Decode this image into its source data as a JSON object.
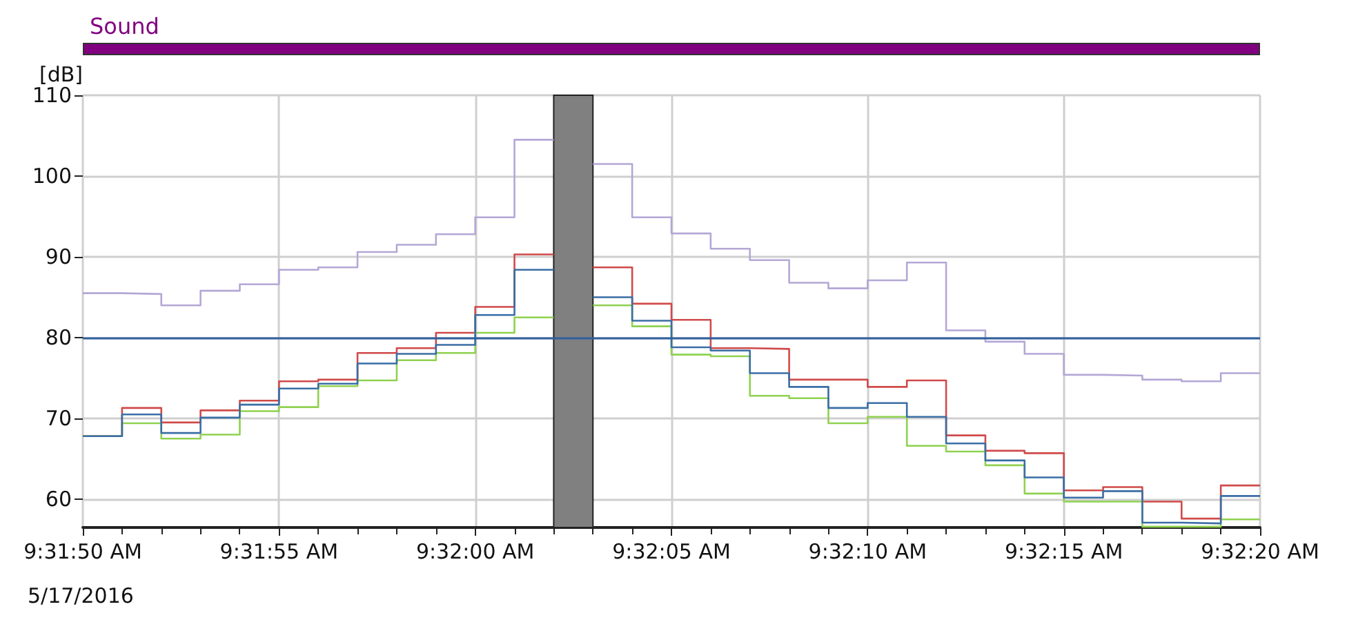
{
  "chart_data": {
    "type": "step",
    "title": "Sound",
    "ylabel": "[dB]",
    "annotations": [
      "5/17/2016"
    ],
    "x": [
      "2016-05-17T09:31:50",
      "2016-05-17T09:31:51",
      "2016-05-17T09:31:52",
      "2016-05-17T09:31:53",
      "2016-05-17T09:31:54",
      "2016-05-17T09:31:55",
      "2016-05-17T09:31:56",
      "2016-05-17T09:31:57",
      "2016-05-17T09:31:58",
      "2016-05-17T09:31:59",
      "2016-05-17T09:32:00",
      "2016-05-17T09:32:01",
      "2016-05-17T09:32:02",
      "2016-05-17T09:32:03",
      "2016-05-17T09:32:04",
      "2016-05-17T09:32:05",
      "2016-05-17T09:32:06",
      "2016-05-17T09:32:07",
      "2016-05-17T09:32:08",
      "2016-05-17T09:32:09",
      "2016-05-17T09:32:10",
      "2016-05-17T09:32:11",
      "2016-05-17T09:32:12",
      "2016-05-17T09:32:13",
      "2016-05-17T09:32:14",
      "2016-05-17T09:32:15",
      "2016-05-17T09:32:16",
      "2016-05-17T09:32:17",
      "2016-05-17T09:32:18",
      "2016-05-17T09:32:19",
      "2016-05-17T09:32:20"
    ],
    "series": [
      {
        "color": "#b4a7d6",
        "values": [
          85.5,
          85.4,
          84.0,
          85.8,
          86.6,
          88.4,
          88.7,
          90.6,
          91.5,
          92.8,
          94.9,
          104.5,
          null,
          101.5,
          94.9,
          92.9,
          91.0,
          89.6,
          86.8,
          86.1,
          87.1,
          89.3,
          80.9,
          79.5,
          78.0,
          75.4,
          75.3,
          74.8,
          74.6,
          75.6,
          75.6
        ]
      },
      {
        "color": "#d04a4a",
        "values": [
          67.8,
          71.3,
          69.5,
          71.0,
          72.2,
          74.6,
          74.8,
          78.1,
          78.7,
          80.6,
          83.8,
          90.3,
          null,
          88.7,
          84.2,
          82.2,
          78.7,
          78.6,
          74.8,
          74.8,
          73.9,
          74.7,
          67.9,
          66.0,
          65.7,
          61.1,
          61.5,
          59.7,
          57.6,
          61.7,
          61.7
        ]
      },
      {
        "color": "#8fd14f",
        "values": [
          67.8,
          69.4,
          67.5,
          68.0,
          70.9,
          71.4,
          74.0,
          74.7,
          77.2,
          78.1,
          80.6,
          82.5,
          null,
          84.0,
          81.4,
          77.9,
          77.7,
          72.8,
          72.5,
          69.4,
          70.2,
          66.6,
          65.9,
          64.2,
          60.7,
          59.7,
          59.7,
          56.6,
          56.6,
          57.5,
          57.5
        ]
      },
      {
        "color": "#3a6ea5",
        "values": [
          67.8,
          70.5,
          68.2,
          70.1,
          71.7,
          73.7,
          74.3,
          76.8,
          78.0,
          79.1,
          82.8,
          88.4,
          null,
          85.0,
          82.1,
          78.8,
          78.4,
          75.6,
          73.9,
          71.3,
          71.9,
          70.2,
          66.9,
          64.8,
          62.7,
          60.2,
          61.0,
          57.1,
          57.0,
          60.4,
          60.4
        ]
      }
    ],
    "ref_lines": [
      {
        "axis": "y",
        "value": 80,
        "color": "#2f5f9f"
      }
    ],
    "bands": [
      {
        "axis": "x",
        "from": "2016-05-17T09:32:02",
        "to": "2016-05-17T09:32:03",
        "color": "#808080"
      }
    ],
    "xlim": [
      "2016-05-17T09:31:50",
      "2016-05-17T09:32:20"
    ],
    "xticks": [
      {
        "value": "2016-05-17T09:31:50",
        "label": "9:31:50 AM"
      },
      {
        "value": "2016-05-17T09:31:55",
        "label": "9:31:55 AM"
      },
      {
        "value": "2016-05-17T09:32:00",
        "label": "9:32:00 AM"
      },
      {
        "value": "2016-05-17T09:32:05",
        "label": "9:32:05 AM"
      },
      {
        "value": "2016-05-17T09:32:10",
        "label": "9:32:10 AM"
      },
      {
        "value": "2016-05-17T09:32:15",
        "label": "9:32:15 AM"
      },
      {
        "value": "2016-05-17T09:32:20",
        "label": "9:32:20 AM"
      }
    ],
    "ylim": [
      56.5,
      110
    ],
    "yticks": [
      60,
      70,
      80,
      90,
      100,
      110
    ],
    "grid": true,
    "marker": "none",
    "line_style": "solid"
  }
}
